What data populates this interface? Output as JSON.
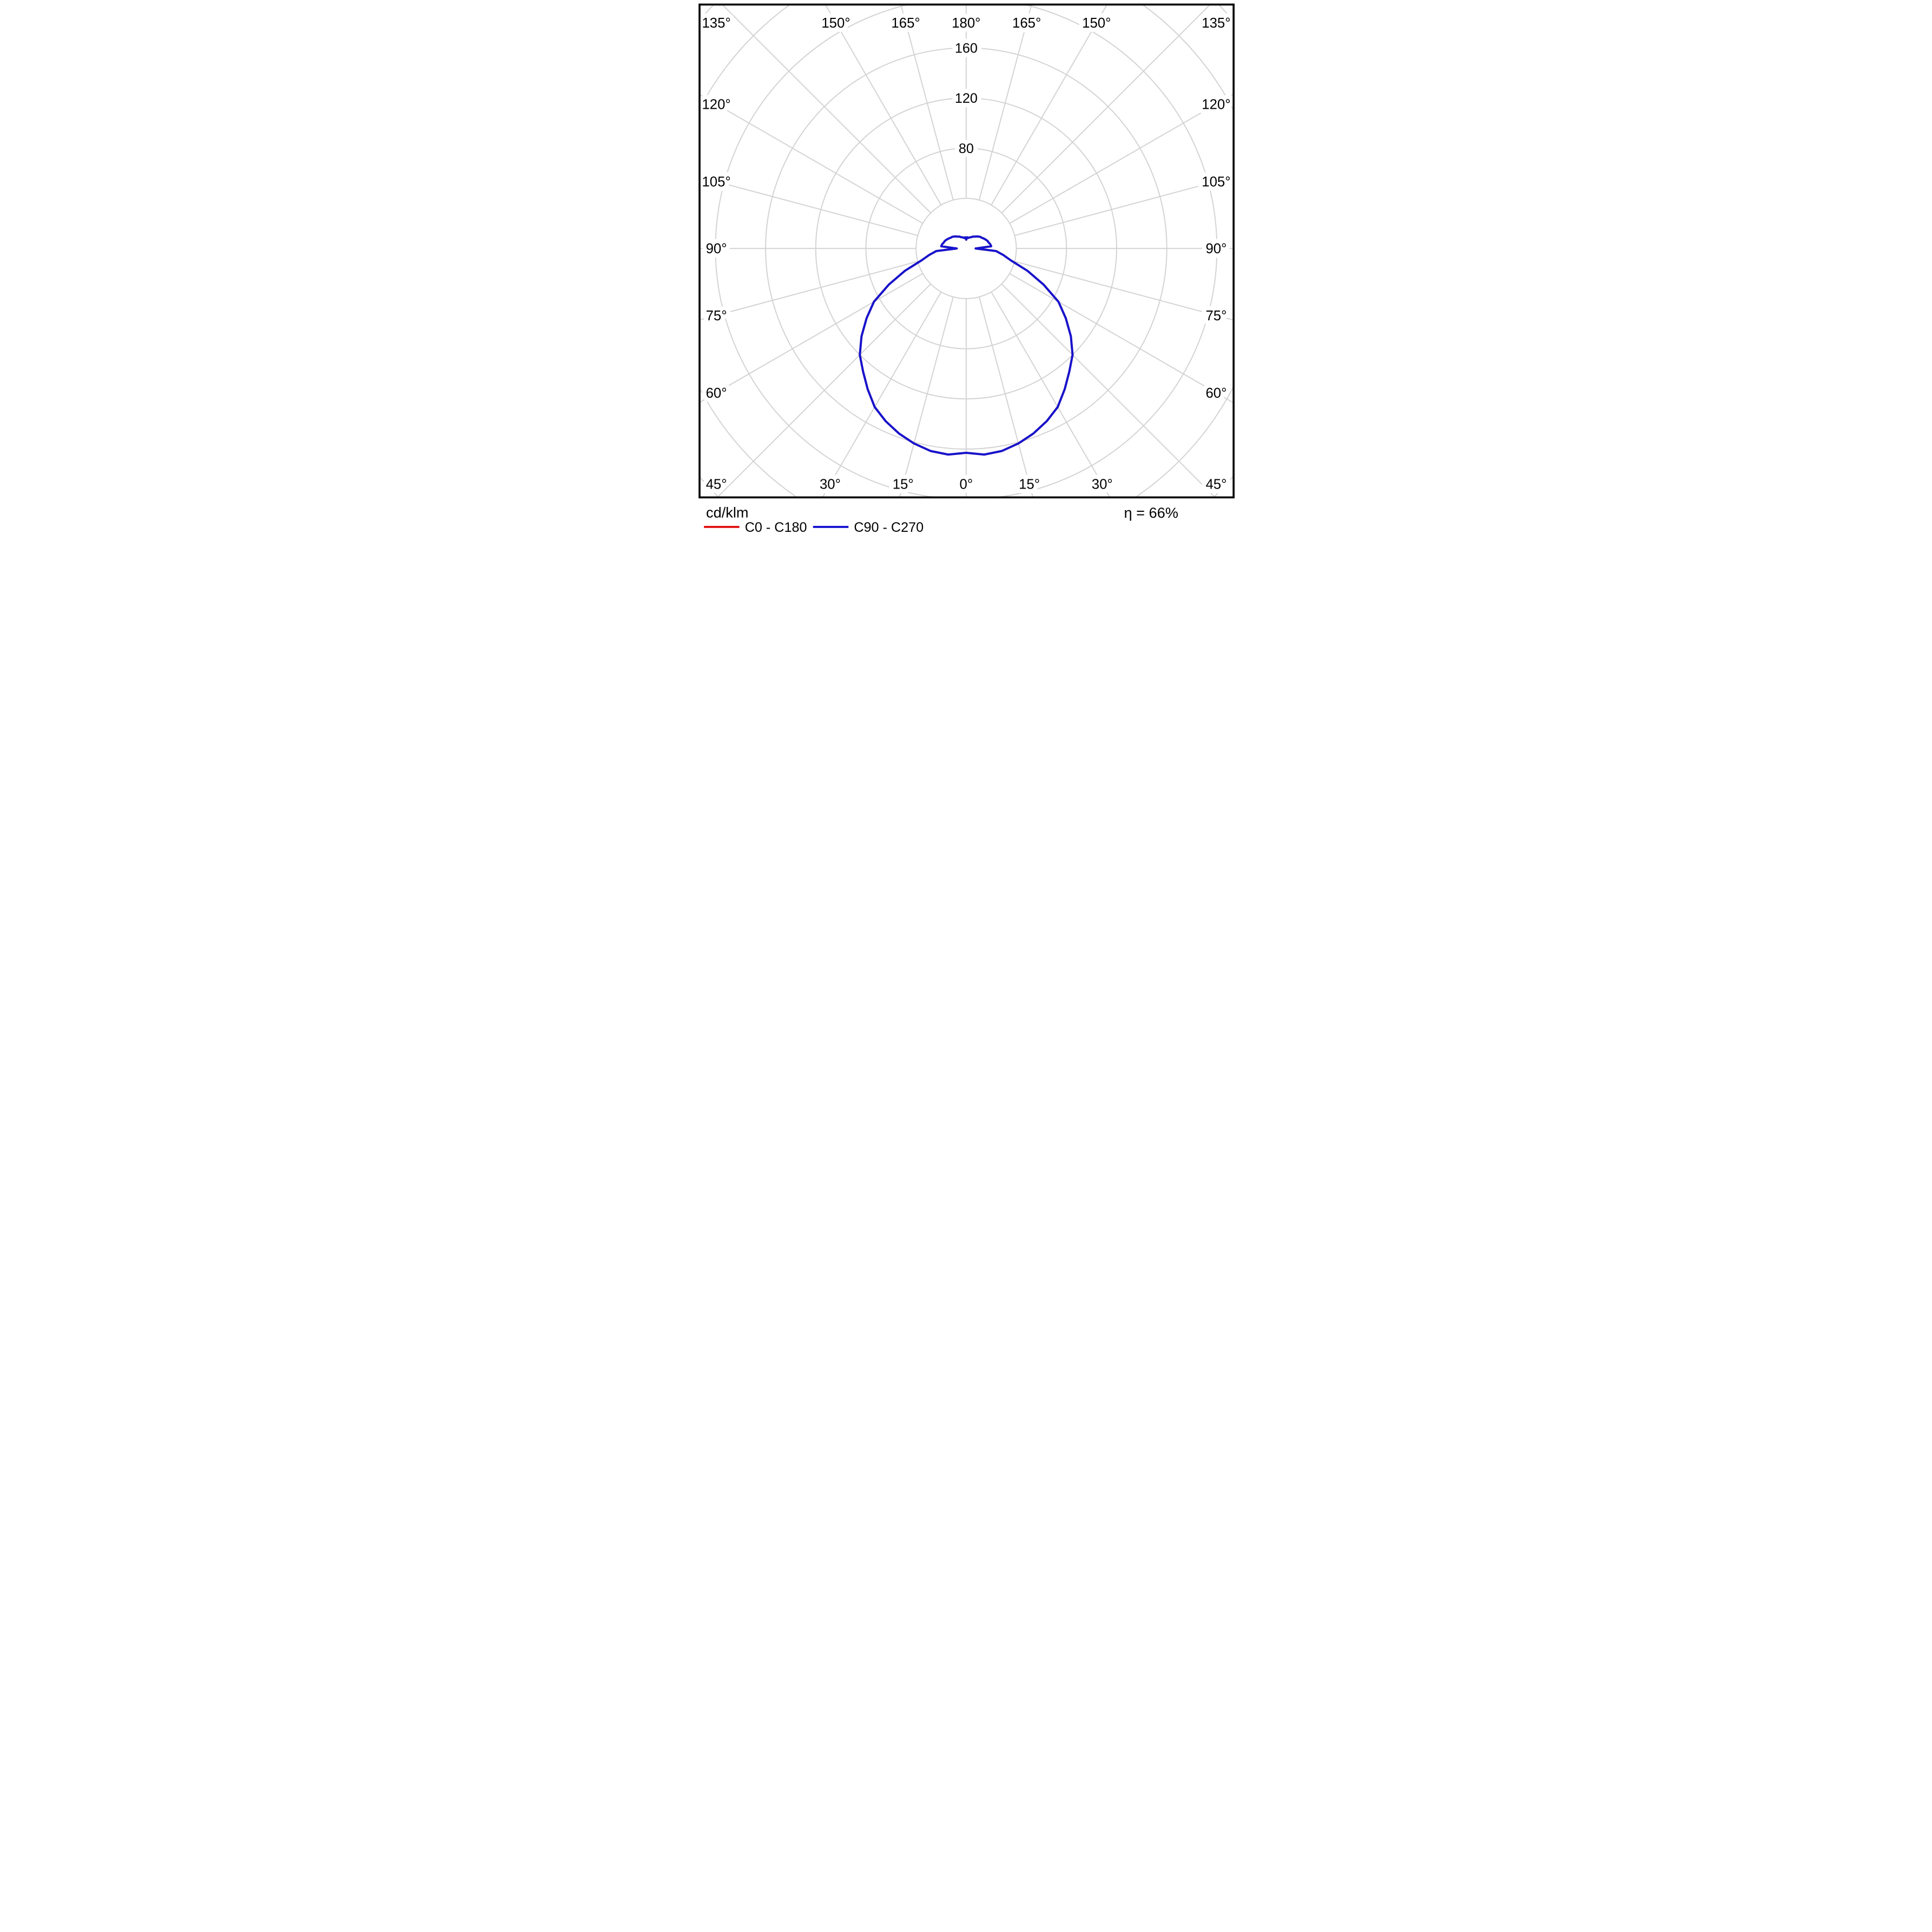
{
  "chart_data": {
    "type": "polar_intensity_distribution",
    "title": "",
    "units_label": "cd/klm",
    "efficiency_label": "η = 66%",
    "radial_axis": {
      "ring_values": [
        40,
        80,
        120,
        160,
        200,
        240,
        280
      ],
      "labeled_rings": [
        "80",
        "120",
        "160"
      ],
      "ring_step": 40,
      "units": "cd/klm"
    },
    "angle_axis": {
      "tick_step_deg": 15,
      "tick_angles_deg": [
        0,
        15,
        30,
        45,
        60,
        75,
        90,
        105,
        120,
        135,
        150,
        165,
        180
      ],
      "tick_labels": [
        "0°",
        "15°",
        "30°",
        "45°",
        "60°",
        "75°",
        "90°",
        "105°",
        "120°",
        "135°",
        "150°",
        "165°",
        "180°"
      ],
      "zero_direction": "down",
      "mirrored_left_right": true
    },
    "gamma_deg": [
      0,
      5,
      10,
      15,
      20,
      25,
      30,
      35,
      40,
      45,
      50,
      55,
      60,
      65,
      70,
      75,
      80,
      85,
      90,
      95,
      100,
      105,
      110,
      115,
      120,
      125,
      130,
      135,
      140,
      145,
      150,
      155,
      160,
      165,
      170,
      175,
      180
    ],
    "series": [
      {
        "name": "C0 - C180",
        "color": "#e11212",
        "visible_in_plot": false,
        "note": "curve coincides with C90 - C270 and is hidden beneath it",
        "values": [
          163,
          165,
          164,
          161,
          157,
          152,
          146,
          137,
          128,
          120,
          109,
          97,
          85,
          68,
          52,
          37,
          30,
          24,
          7.5,
          20,
          19.5,
          18.5,
          18,
          17,
          16,
          15,
          14.5,
          13.5,
          12.5,
          11.5,
          11,
          10,
          9.5,
          9,
          8.5,
          9,
          7
        ]
      },
      {
        "name": "C90 - C270",
        "color": "#1414cf",
        "visible_in_plot": true,
        "note": "symmetric left (C270) / right (C90) halves",
        "values": [
          163,
          165,
          164,
          161,
          157,
          152,
          146,
          137,
          128,
          120,
          109,
          97,
          85,
          68,
          52,
          37,
          30,
          24,
          7.5,
          20,
          19.5,
          18.5,
          18,
          17,
          16,
          15,
          14.5,
          13.5,
          12.5,
          11.5,
          11,
          10,
          9.5,
          9,
          8.5,
          9,
          7
        ]
      }
    ],
    "grid_color": "#d3d3d3",
    "border_color": "#000000",
    "legend_position": "bottom-left",
    "grid_on": true
  },
  "legend": {
    "items": [
      {
        "label": "C0 - C180",
        "color": "#e11212"
      },
      {
        "label": "C90 - C270",
        "color": "#1414cf"
      }
    ]
  },
  "footer": {
    "units_label": "cd/klm",
    "efficiency_label": "η = 66%"
  }
}
